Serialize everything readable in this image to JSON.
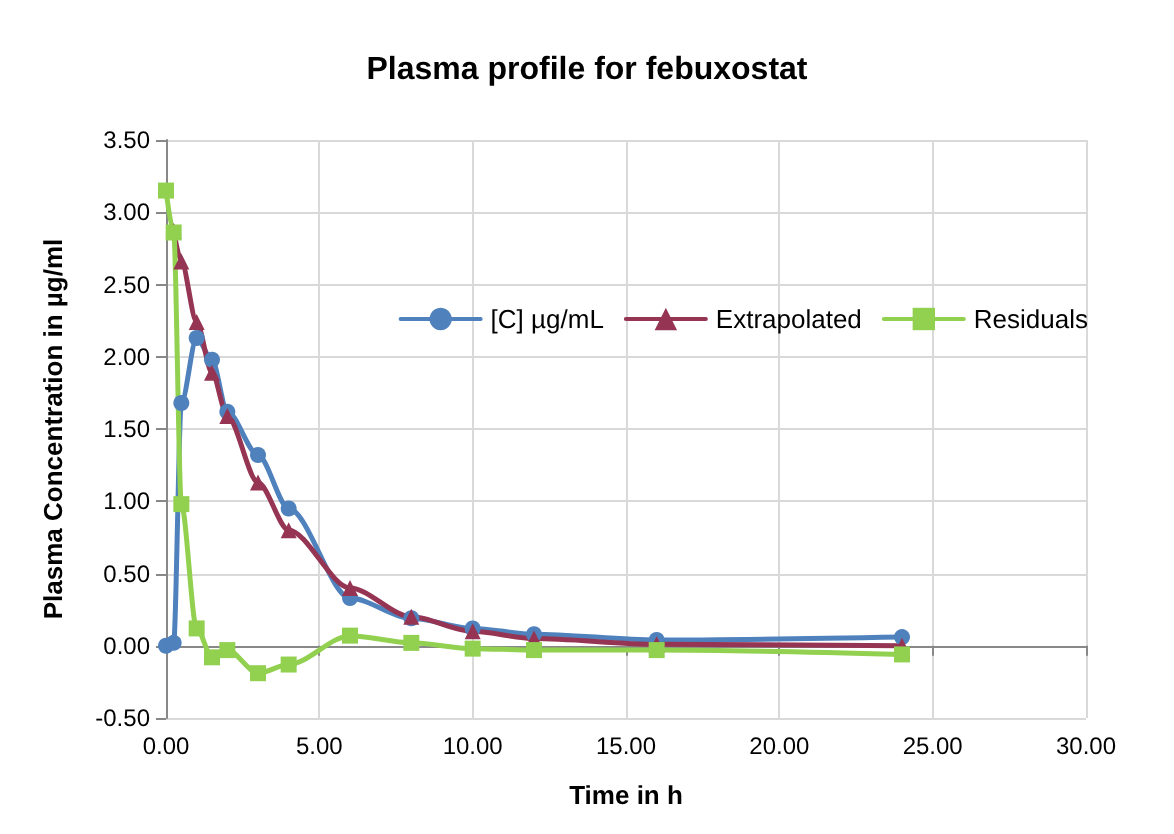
{
  "chart_data": {
    "type": "line",
    "title": "Plasma profile for febuxostat",
    "xlabel": "Time in h",
    "ylabel": "Plasma Concentration in µg/ml",
    "x": [
      0,
      0.25,
      0.5,
      1,
      1.5,
      2,
      3,
      4,
      6,
      8,
      10,
      12,
      16,
      24
    ],
    "series": [
      {
        "name": "[C] µg/mL",
        "color": "#4f81bd",
        "marker": "circle",
        "values": [
          0,
          0.02,
          1.68,
          2.13,
          1.98,
          1.62,
          1.32,
          0.95,
          0.33,
          0.19,
          0.12,
          0.08,
          0.04,
          0.06
        ]
      },
      {
        "name": "Extrapolated",
        "color": "#953553",
        "marker": "triangle",
        "values": [
          null,
          2.87,
          2.66,
          2.24,
          1.89,
          1.59,
          1.13,
          0.8,
          0.4,
          0.2,
          0.1,
          0.05,
          0.01,
          0
        ]
      },
      {
        "name": "Residuals",
        "color": "#92d050",
        "marker": "square",
        "values": [
          3.15,
          2.86,
          0.98,
          0.12,
          -0.08,
          -0.03,
          -0.19,
          -0.13,
          0.07,
          0.02,
          -0.02,
          -0.03,
          -0.03,
          -0.06
        ]
      }
    ],
    "xlim": [
      0,
      30
    ],
    "xticks": [
      {
        "value": 0,
        "label": "0.00"
      },
      {
        "value": 5,
        "label": "5.00"
      },
      {
        "value": 10,
        "label": "10.00"
      },
      {
        "value": 15,
        "label": "15.00"
      },
      {
        "value": 20,
        "label": "20.00"
      },
      {
        "value": 25,
        "label": "25.00"
      },
      {
        "value": 30,
        "label": "30.00"
      }
    ],
    "ylim": [
      -0.5,
      3.5
    ],
    "yticks": [
      {
        "value": -0.5,
        "label": "-0.50"
      },
      {
        "value": 0,
        "label": "0.00"
      },
      {
        "value": 0.5,
        "label": "0.50"
      },
      {
        "value": 1,
        "label": "1.00"
      },
      {
        "value": 1.5,
        "label": "1.50"
      },
      {
        "value": 2,
        "label": "2.00"
      },
      {
        "value": 2.5,
        "label": "2.50"
      },
      {
        "value": 3,
        "label": "3.00"
      },
      {
        "value": 3.5,
        "label": "3.50"
      }
    ],
    "grid": true,
    "legend": "top right",
    "line_style": "solid"
  }
}
